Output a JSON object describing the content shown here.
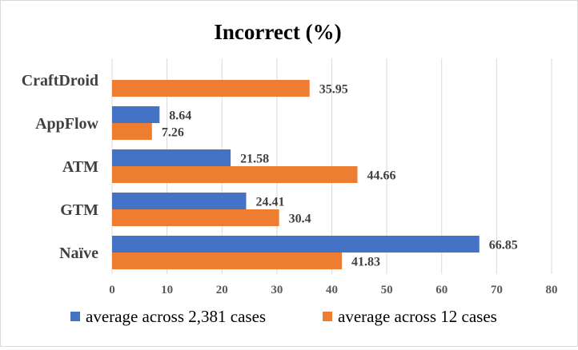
{
  "chart_data": {
    "type": "bar",
    "orientation": "horizontal",
    "title": "Incorrect (%)",
    "categories": [
      "CraftDroid",
      "AppFlow",
      "ATM",
      "GTM",
      "Naïve"
    ],
    "series": [
      {
        "name": "average across 2,381 cases",
        "color": "#4472c4",
        "values": [
          null,
          8.64,
          21.58,
          24.41,
          66.85
        ]
      },
      {
        "name": "average across 12 cases",
        "color": "#ed7d31",
        "values": [
          35.95,
          7.26,
          44.66,
          30.4,
          41.83
        ]
      }
    ],
    "xlim": [
      0,
      80
    ],
    "xticks": [
      0,
      10,
      20,
      30,
      40,
      50,
      60,
      70,
      80
    ],
    "grid": true,
    "legend": "bottom"
  }
}
